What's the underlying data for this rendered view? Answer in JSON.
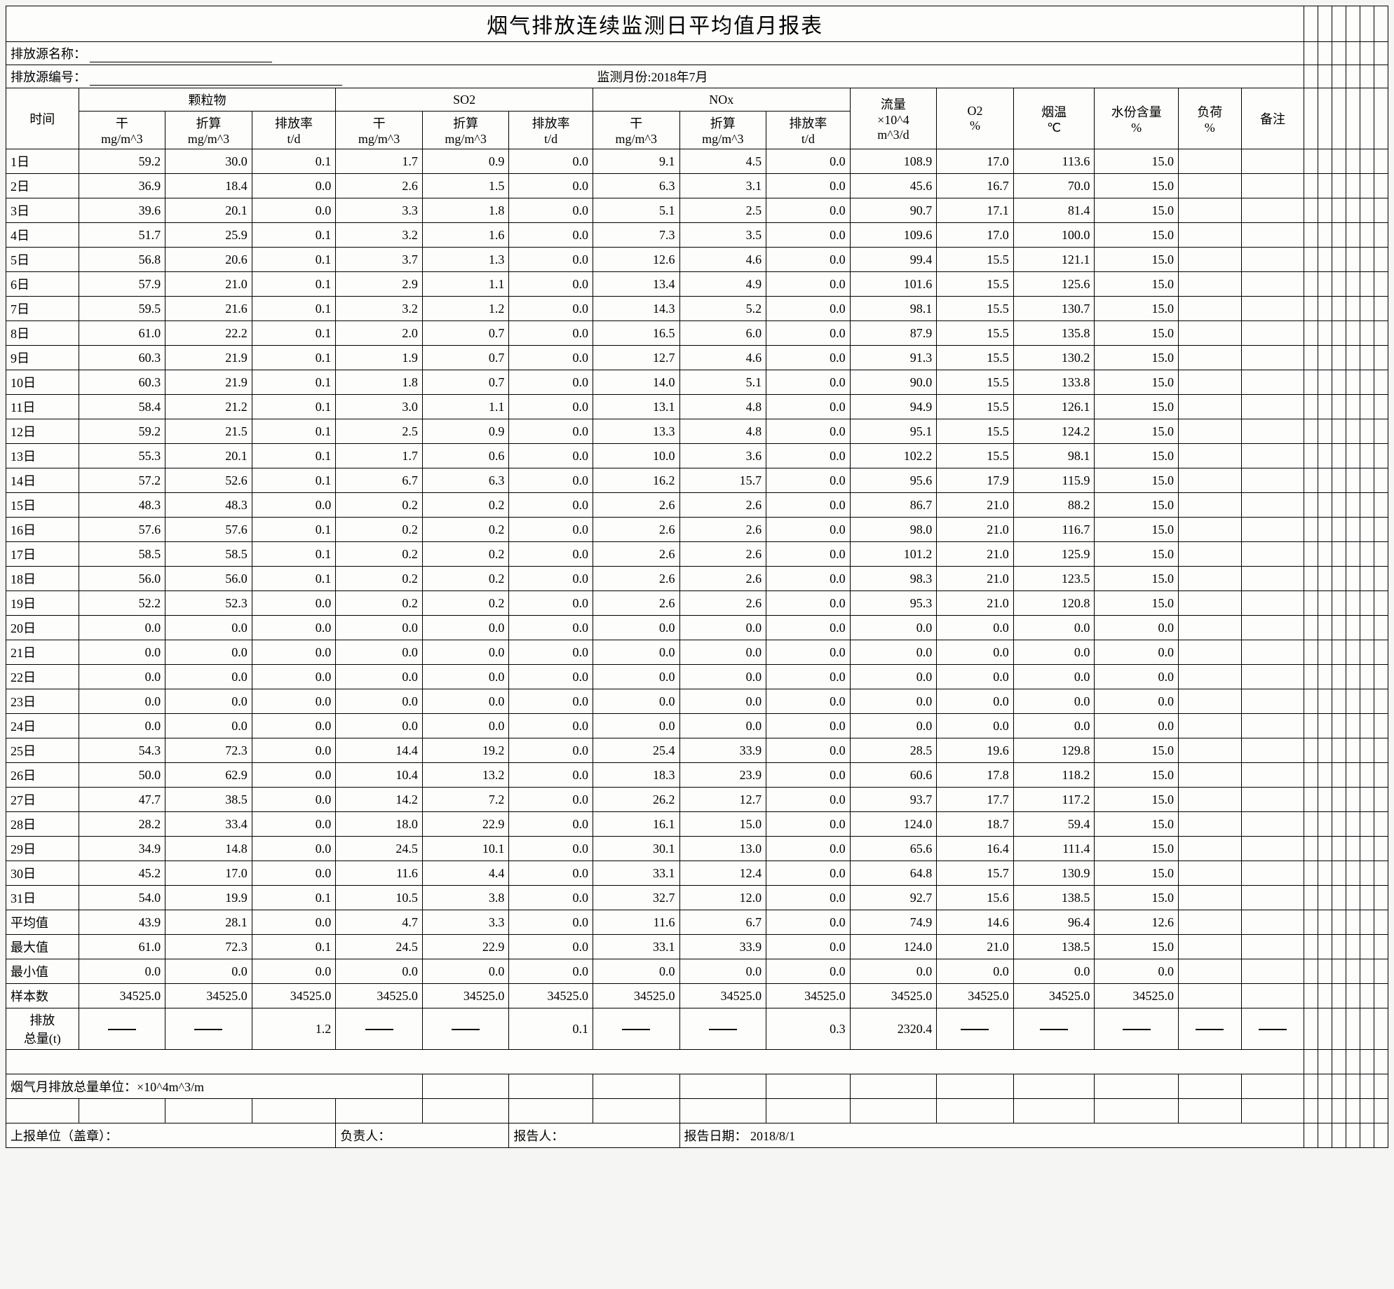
{
  "title": "烟气排放连续监测日平均值月报表",
  "labels": {
    "sourceName": "排放源名称：",
    "sourceNo": "排放源编号：",
    "monitorMonth": "监测月份:2018年7月",
    "time": "时间",
    "pm": "颗粒物",
    "so2": "SO2",
    "nox": "NOx",
    "dry": "干",
    "conv": "折算",
    "rate": "排放率",
    "mgm3": "mg/m^3",
    "td": "t/d",
    "flow1": "流量",
    "flow2": "×10^4",
    "flow3": "m^3/d",
    "o2a": "O2",
    "o2b": "%",
    "tempa": "烟温",
    "tempb": "℃",
    "moista": "水份含量",
    "moistb": "%",
    "loada": "负荷",
    "loadb": "%",
    "remark": "备注",
    "avg": "平均值",
    "max": "最大值",
    "min": "最小值",
    "samples": "样本数",
    "totala": "排放",
    "totalb": "总量(t)",
    "unitNote": "烟气月排放总量单位：×10^4m^3/m",
    "reportUnit": "上报单位（盖章）：",
    "manager": "负责人：",
    "reporter": "报告人：",
    "reportDate": "报告日期： 2018/8/1"
  },
  "columns": [
    "时间",
    "干 mg/m^3",
    "折算 mg/m^3",
    "排放率 t/d",
    "干 mg/m^3",
    "折算 mg/m^3",
    "排放率 t/d",
    "干 mg/m^3",
    "折算 mg/m^3",
    "排放率 t/d",
    "流量",
    "O2",
    "烟温",
    "水份",
    "负荷",
    "备注"
  ],
  "rows": [
    [
      "1日",
      "59.2",
      "30.0",
      "0.1",
      "1.7",
      "0.9",
      "0.0",
      "9.1",
      "4.5",
      "0.0",
      "108.9",
      "17.0",
      "113.6",
      "15.0",
      "",
      ""
    ],
    [
      "2日",
      "36.9",
      "18.4",
      "0.0",
      "2.6",
      "1.5",
      "0.0",
      "6.3",
      "3.1",
      "0.0",
      "45.6",
      "16.7",
      "70.0",
      "15.0",
      "",
      ""
    ],
    [
      "3日",
      "39.6",
      "20.1",
      "0.0",
      "3.3",
      "1.8",
      "0.0",
      "5.1",
      "2.5",
      "0.0",
      "90.7",
      "17.1",
      "81.4",
      "15.0",
      "",
      ""
    ],
    [
      "4日",
      "51.7",
      "25.9",
      "0.1",
      "3.2",
      "1.6",
      "0.0",
      "7.3",
      "3.5",
      "0.0",
      "109.6",
      "17.0",
      "100.0",
      "15.0",
      "",
      ""
    ],
    [
      "5日",
      "56.8",
      "20.6",
      "0.1",
      "3.7",
      "1.3",
      "0.0",
      "12.6",
      "4.6",
      "0.0",
      "99.4",
      "15.5",
      "121.1",
      "15.0",
      "",
      ""
    ],
    [
      "6日",
      "57.9",
      "21.0",
      "0.1",
      "2.9",
      "1.1",
      "0.0",
      "13.4",
      "4.9",
      "0.0",
      "101.6",
      "15.5",
      "125.6",
      "15.0",
      "",
      ""
    ],
    [
      "7日",
      "59.5",
      "21.6",
      "0.1",
      "3.2",
      "1.2",
      "0.0",
      "14.3",
      "5.2",
      "0.0",
      "98.1",
      "15.5",
      "130.7",
      "15.0",
      "",
      ""
    ],
    [
      "8日",
      "61.0",
      "22.2",
      "0.1",
      "2.0",
      "0.7",
      "0.0",
      "16.5",
      "6.0",
      "0.0",
      "87.9",
      "15.5",
      "135.8",
      "15.0",
      "",
      ""
    ],
    [
      "9日",
      "60.3",
      "21.9",
      "0.1",
      "1.9",
      "0.7",
      "0.0",
      "12.7",
      "4.6",
      "0.0",
      "91.3",
      "15.5",
      "130.2",
      "15.0",
      "",
      ""
    ],
    [
      "10日",
      "60.3",
      "21.9",
      "0.1",
      "1.8",
      "0.7",
      "0.0",
      "14.0",
      "5.1",
      "0.0",
      "90.0",
      "15.5",
      "133.8",
      "15.0",
      "",
      ""
    ],
    [
      "11日",
      "58.4",
      "21.2",
      "0.1",
      "3.0",
      "1.1",
      "0.0",
      "13.1",
      "4.8",
      "0.0",
      "94.9",
      "15.5",
      "126.1",
      "15.0",
      "",
      ""
    ],
    [
      "12日",
      "59.2",
      "21.5",
      "0.1",
      "2.5",
      "0.9",
      "0.0",
      "13.3",
      "4.8",
      "0.0",
      "95.1",
      "15.5",
      "124.2",
      "15.0",
      "",
      ""
    ],
    [
      "13日",
      "55.3",
      "20.1",
      "0.1",
      "1.7",
      "0.6",
      "0.0",
      "10.0",
      "3.6",
      "0.0",
      "102.2",
      "15.5",
      "98.1",
      "15.0",
      "",
      ""
    ],
    [
      "14日",
      "57.2",
      "52.6",
      "0.1",
      "6.7",
      "6.3",
      "0.0",
      "16.2",
      "15.7",
      "0.0",
      "95.6",
      "17.9",
      "115.9",
      "15.0",
      "",
      ""
    ],
    [
      "15日",
      "48.3",
      "48.3",
      "0.0",
      "0.2",
      "0.2",
      "0.0",
      "2.6",
      "2.6",
      "0.0",
      "86.7",
      "21.0",
      "88.2",
      "15.0",
      "",
      ""
    ],
    [
      "16日",
      "57.6",
      "57.6",
      "0.1",
      "0.2",
      "0.2",
      "0.0",
      "2.6",
      "2.6",
      "0.0",
      "98.0",
      "21.0",
      "116.7",
      "15.0",
      "",
      ""
    ],
    [
      "17日",
      "58.5",
      "58.5",
      "0.1",
      "0.2",
      "0.2",
      "0.0",
      "2.6",
      "2.6",
      "0.0",
      "101.2",
      "21.0",
      "125.9",
      "15.0",
      "",
      ""
    ],
    [
      "18日",
      "56.0",
      "56.0",
      "0.1",
      "0.2",
      "0.2",
      "0.0",
      "2.6",
      "2.6",
      "0.0",
      "98.3",
      "21.0",
      "123.5",
      "15.0",
      "",
      ""
    ],
    [
      "19日",
      "52.2",
      "52.3",
      "0.0",
      "0.2",
      "0.2",
      "0.0",
      "2.6",
      "2.6",
      "0.0",
      "95.3",
      "21.0",
      "120.8",
      "15.0",
      "",
      ""
    ],
    [
      "20日",
      "0.0",
      "0.0",
      "0.0",
      "0.0",
      "0.0",
      "0.0",
      "0.0",
      "0.0",
      "0.0",
      "0.0",
      "0.0",
      "0.0",
      "0.0",
      "",
      ""
    ],
    [
      "21日",
      "0.0",
      "0.0",
      "0.0",
      "0.0",
      "0.0",
      "0.0",
      "0.0",
      "0.0",
      "0.0",
      "0.0",
      "0.0",
      "0.0",
      "0.0",
      "",
      ""
    ],
    [
      "22日",
      "0.0",
      "0.0",
      "0.0",
      "0.0",
      "0.0",
      "0.0",
      "0.0",
      "0.0",
      "0.0",
      "0.0",
      "0.0",
      "0.0",
      "0.0",
      "",
      ""
    ],
    [
      "23日",
      "0.0",
      "0.0",
      "0.0",
      "0.0",
      "0.0",
      "0.0",
      "0.0",
      "0.0",
      "0.0",
      "0.0",
      "0.0",
      "0.0",
      "0.0",
      "",
      ""
    ],
    [
      "24日",
      "0.0",
      "0.0",
      "0.0",
      "0.0",
      "0.0",
      "0.0",
      "0.0",
      "0.0",
      "0.0",
      "0.0",
      "0.0",
      "0.0",
      "0.0",
      "",
      ""
    ],
    [
      "25日",
      "54.3",
      "72.3",
      "0.0",
      "14.4",
      "19.2",
      "0.0",
      "25.4",
      "33.9",
      "0.0",
      "28.5",
      "19.6",
      "129.8",
      "15.0",
      "",
      ""
    ],
    [
      "26日",
      "50.0",
      "62.9",
      "0.0",
      "10.4",
      "13.2",
      "0.0",
      "18.3",
      "23.9",
      "0.0",
      "60.6",
      "17.8",
      "118.2",
      "15.0",
      "",
      ""
    ],
    [
      "27日",
      "47.7",
      "38.5",
      "0.0",
      "14.2",
      "7.2",
      "0.0",
      "26.2",
      "12.7",
      "0.0",
      "93.7",
      "17.7",
      "117.2",
      "15.0",
      "",
      ""
    ],
    [
      "28日",
      "28.2",
      "33.4",
      "0.0",
      "18.0",
      "22.9",
      "0.0",
      "16.1",
      "15.0",
      "0.0",
      "124.0",
      "18.7",
      "59.4",
      "15.0",
      "",
      ""
    ],
    [
      "29日",
      "34.9",
      "14.8",
      "0.0",
      "24.5",
      "10.1",
      "0.0",
      "30.1",
      "13.0",
      "0.0",
      "65.6",
      "16.4",
      "111.4",
      "15.0",
      "",
      ""
    ],
    [
      "30日",
      "45.2",
      "17.0",
      "0.0",
      "11.6",
      "4.4",
      "0.0",
      "33.1",
      "12.4",
      "0.0",
      "64.8",
      "15.7",
      "130.9",
      "15.0",
      "",
      ""
    ],
    [
      "31日",
      "54.0",
      "19.9",
      "0.1",
      "10.5",
      "3.8",
      "0.0",
      "32.7",
      "12.0",
      "0.0",
      "92.7",
      "15.6",
      "138.5",
      "15.0",
      "",
      ""
    ]
  ],
  "summary": {
    "avg": [
      "43.9",
      "28.1",
      "0.0",
      "4.7",
      "3.3",
      "0.0",
      "11.6",
      "6.7",
      "0.0",
      "74.9",
      "14.6",
      "96.4",
      "12.6",
      "",
      ""
    ],
    "max": [
      "61.0",
      "72.3",
      "0.1",
      "24.5",
      "22.9",
      "0.0",
      "33.1",
      "33.9",
      "0.0",
      "124.0",
      "21.0",
      "138.5",
      "15.0",
      "",
      ""
    ],
    "min": [
      "0.0",
      "0.0",
      "0.0",
      "0.0",
      "0.0",
      "0.0",
      "0.0",
      "0.0",
      "0.0",
      "0.0",
      "0.0",
      "0.0",
      "0.0",
      "",
      ""
    ],
    "samples": [
      "34525.0",
      "34525.0",
      "34525.0",
      "34525.0",
      "34525.0",
      "34525.0",
      "34525.0",
      "34525.0",
      "34525.0",
      "34525.0",
      "34525.0",
      "34525.0",
      "34525.0",
      "",
      ""
    ],
    "total": [
      "—",
      "—",
      "1.2",
      "—",
      "—",
      "0.1",
      "—",
      "—",
      "0.3",
      "2320.4",
      "—",
      "—",
      "—",
      "—",
      "—"
    ]
  },
  "style": {
    "bg": "#f5f5f3",
    "border": "#000000",
    "font": "SimSun"
  }
}
